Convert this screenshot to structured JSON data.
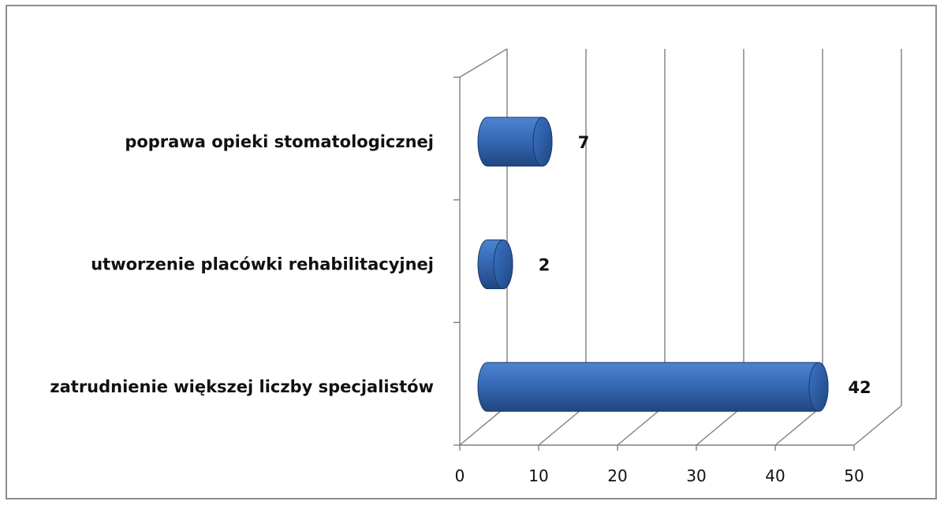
{
  "chart_data": {
    "type": "bar",
    "orientation": "horizontal",
    "style": "3d-cylinder",
    "categories": [
      "poprawa opieki stomatologicznej",
      "utworzenie placówki rehabilitacyjnej",
      "zatrudnienie większej liczby specjalistów"
    ],
    "values": [
      7,
      2,
      42
    ],
    "data_labels": [
      "7",
      "2",
      "42"
    ],
    "xlim": [
      0,
      50
    ],
    "xticks": [
      "0",
      "10",
      "20",
      "30",
      "40",
      "50"
    ],
    "grid": "vertical",
    "legend": "none",
    "bar_color": "#2f62a8",
    "grid_color": "#7f7f7f"
  }
}
